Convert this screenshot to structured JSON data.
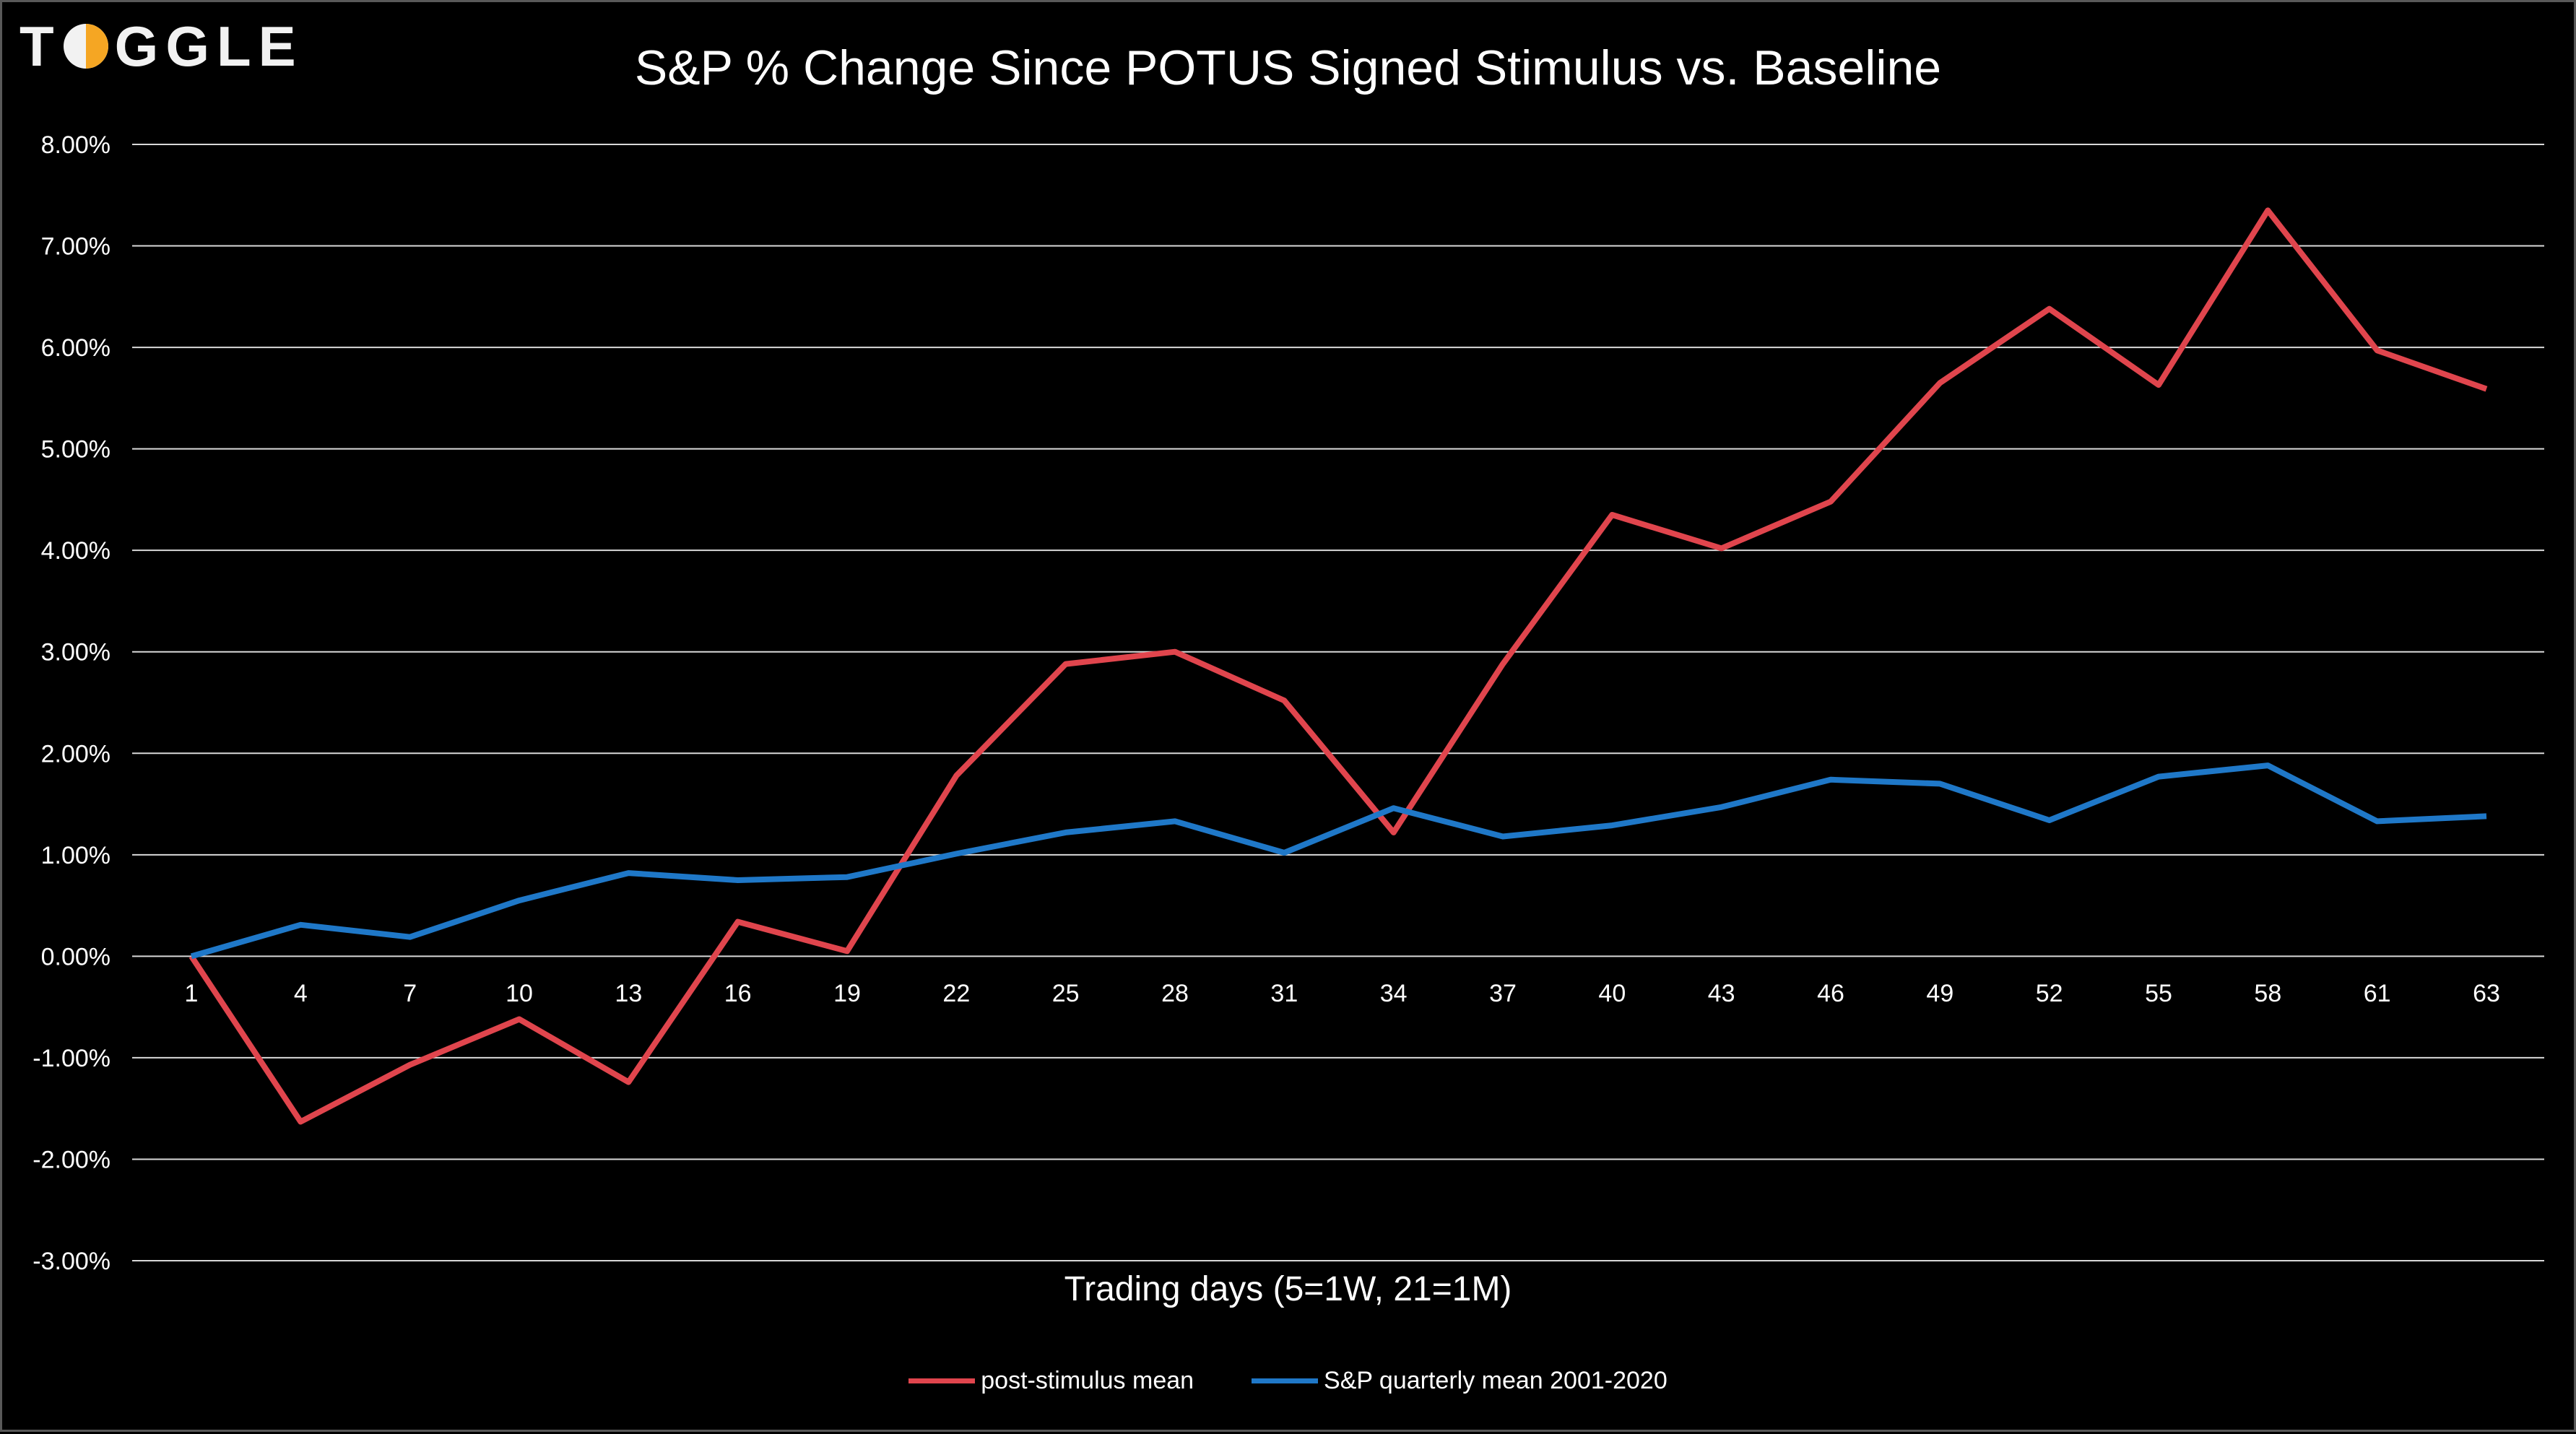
{
  "logo": {
    "text_left": "T",
    "text_right": "GGLE",
    "accent": "#F5A623"
  },
  "chart_data": {
    "type": "line",
    "title": "S&P % Change Since POTUS Signed Stimulus vs. Baseline",
    "xlabel": "Trading days (5=1W, 21=1M)",
    "ylabel": "",
    "categories": [
      "1",
      "4",
      "7",
      "10",
      "13",
      "16",
      "19",
      "22",
      "25",
      "28",
      "31",
      "34",
      "37",
      "40",
      "43",
      "46",
      "49",
      "52",
      "55",
      "58",
      "61",
      "63"
    ],
    "yticks": [
      "8.00%",
      "7.00%",
      "6.00%",
      "5.00%",
      "4.00%",
      "3.00%",
      "2.00%",
      "1.00%",
      "0.00%",
      "-1.00%",
      "-2.00%",
      "-3.00%"
    ],
    "ylim": [
      -3,
      8
    ],
    "grid": true,
    "legend_position": "bottom",
    "series": [
      {
        "name": "post-stimulus mean",
        "color": "#E0454D",
        "values": [
          0.0,
          -1.63,
          -1.07,
          -0.62,
          -1.24,
          0.34,
          0.05,
          1.78,
          2.88,
          3.0,
          2.52,
          1.22,
          2.88,
          4.35,
          4.02,
          4.48,
          5.65,
          6.38,
          5.63,
          7.35,
          5.97,
          5.59
        ]
      },
      {
        "name": "S&P quarterly mean 2001-2020",
        "color": "#1F78C8",
        "values": [
          0.0,
          0.31,
          0.19,
          0.55,
          0.82,
          0.75,
          0.78,
          1.01,
          1.22,
          1.33,
          1.02,
          1.46,
          1.18,
          1.29,
          1.47,
          1.74,
          1.7,
          1.34,
          1.77,
          1.88,
          1.33,
          1.38
        ]
      }
    ]
  }
}
